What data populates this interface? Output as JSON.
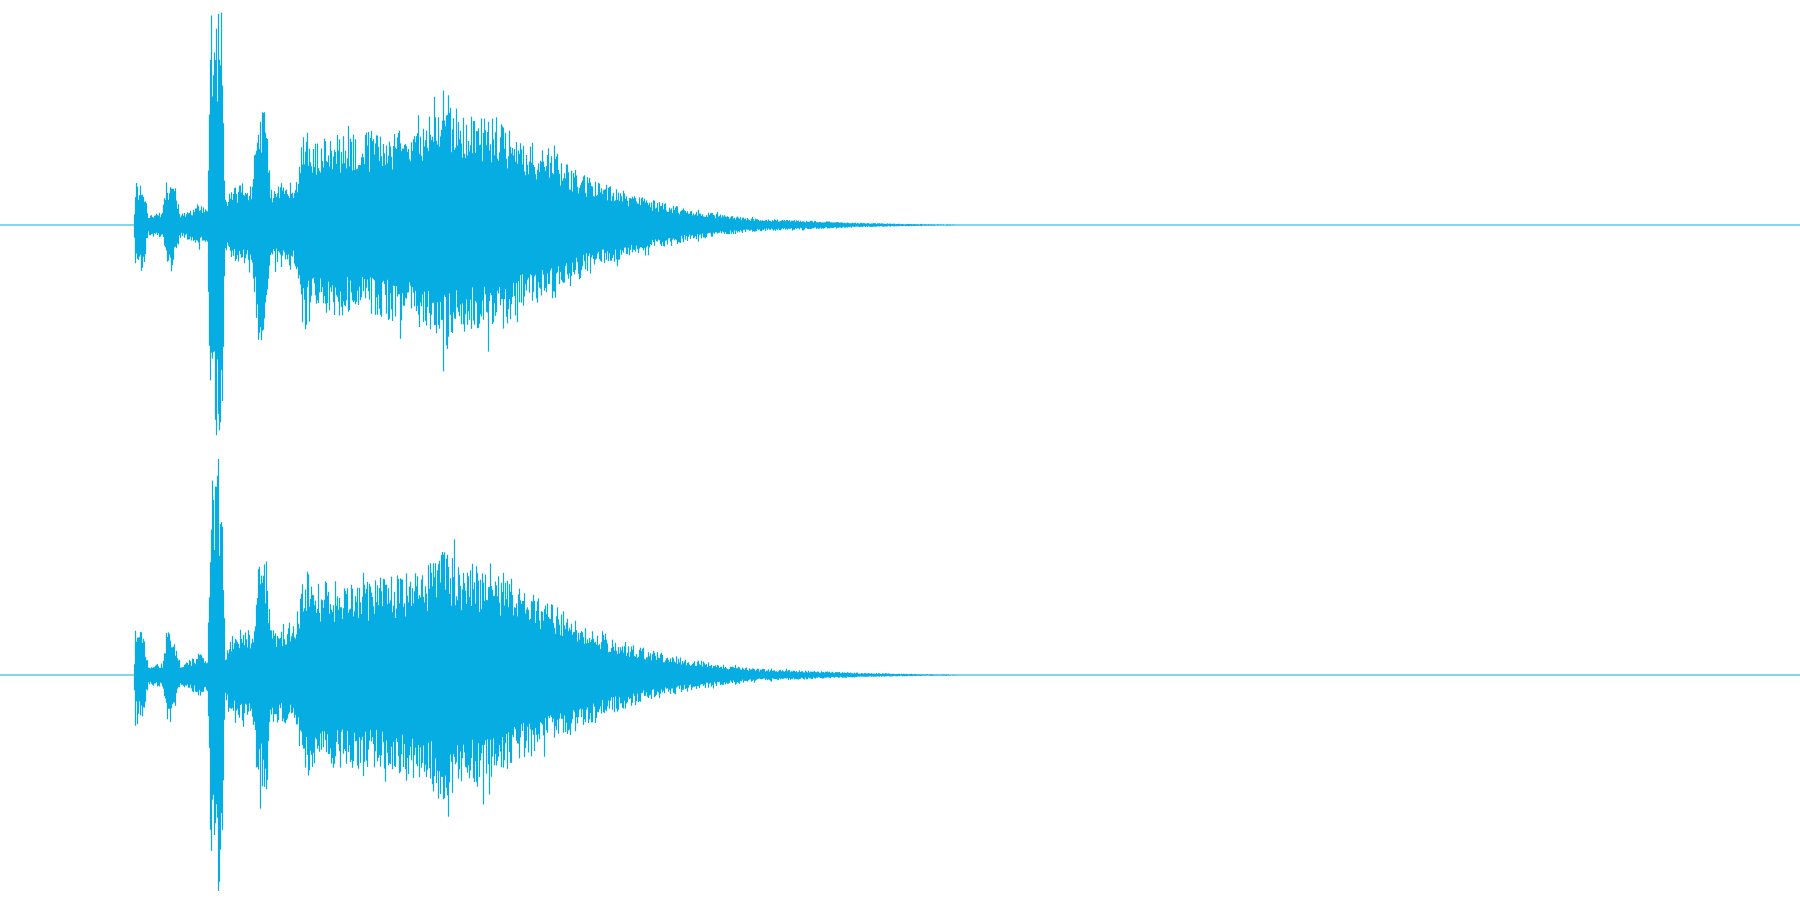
{
  "waveform": {
    "color": "#06ade2",
    "background": "#ffffff",
    "channels": [
      {
        "name": "left",
        "envelope": [
          [
            0.0,
            0.0
          ],
          [
            0.074,
            0.0
          ],
          [
            0.075,
            0.2
          ],
          [
            0.078,
            0.22
          ],
          [
            0.08,
            0.18
          ],
          [
            0.082,
            0.05
          ],
          [
            0.09,
            0.06
          ],
          [
            0.092,
            0.2
          ],
          [
            0.096,
            0.23
          ],
          [
            0.098,
            0.1
          ],
          [
            0.1,
            0.06
          ],
          [
            0.105,
            0.07
          ],
          [
            0.11,
            0.1
          ],
          [
            0.115,
            0.08
          ],
          [
            0.117,
            0.99
          ],
          [
            0.123,
            0.99
          ],
          [
            0.125,
            0.12
          ],
          [
            0.13,
            0.18
          ],
          [
            0.135,
            0.2
          ],
          [
            0.14,
            0.18
          ],
          [
            0.143,
            0.55
          ],
          [
            0.148,
            0.56
          ],
          [
            0.15,
            0.18
          ],
          [
            0.158,
            0.2
          ],
          [
            0.165,
            0.22
          ],
          [
            0.168,
            0.5
          ],
          [
            0.175,
            0.42
          ],
          [
            0.19,
            0.42
          ],
          [
            0.21,
            0.44
          ],
          [
            0.23,
            0.46
          ],
          [
            0.245,
            0.6
          ],
          [
            0.26,
            0.5
          ],
          [
            0.275,
            0.52
          ],
          [
            0.29,
            0.4
          ],
          [
            0.305,
            0.36
          ],
          [
            0.32,
            0.26
          ],
          [
            0.34,
            0.18
          ],
          [
            0.36,
            0.12
          ],
          [
            0.38,
            0.08
          ],
          [
            0.4,
            0.05
          ],
          [
            0.42,
            0.03
          ],
          [
            0.45,
            0.02
          ],
          [
            0.48,
            0.01
          ],
          [
            0.5,
            0.006
          ],
          [
            0.53,
            0.003
          ],
          [
            0.54,
            0.0
          ],
          [
            1.0,
            0.0
          ]
        ]
      },
      {
        "name": "right",
        "envelope": [
          [
            0.0,
            0.0
          ],
          [
            0.074,
            0.0
          ],
          [
            0.075,
            0.2
          ],
          [
            0.078,
            0.22
          ],
          [
            0.08,
            0.18
          ],
          [
            0.082,
            0.05
          ],
          [
            0.09,
            0.06
          ],
          [
            0.092,
            0.2
          ],
          [
            0.096,
            0.23
          ],
          [
            0.098,
            0.1
          ],
          [
            0.1,
            0.06
          ],
          [
            0.105,
            0.07
          ],
          [
            0.11,
            0.1
          ],
          [
            0.115,
            0.08
          ],
          [
            0.117,
            0.99
          ],
          [
            0.123,
            0.99
          ],
          [
            0.125,
            0.12
          ],
          [
            0.13,
            0.2
          ],
          [
            0.135,
            0.22
          ],
          [
            0.14,
            0.2
          ],
          [
            0.143,
            0.56
          ],
          [
            0.148,
            0.56
          ],
          [
            0.15,
            0.22
          ],
          [
            0.158,
            0.24
          ],
          [
            0.165,
            0.26
          ],
          [
            0.168,
            0.5
          ],
          [
            0.175,
            0.44
          ],
          [
            0.19,
            0.44
          ],
          [
            0.21,
            0.46
          ],
          [
            0.23,
            0.48
          ],
          [
            0.245,
            0.6
          ],
          [
            0.26,
            0.52
          ],
          [
            0.275,
            0.52
          ],
          [
            0.29,
            0.4
          ],
          [
            0.305,
            0.34
          ],
          [
            0.32,
            0.26
          ],
          [
            0.34,
            0.18
          ],
          [
            0.36,
            0.12
          ],
          [
            0.38,
            0.08
          ],
          [
            0.4,
            0.05
          ],
          [
            0.42,
            0.03
          ],
          [
            0.45,
            0.02
          ],
          [
            0.48,
            0.01
          ],
          [
            0.5,
            0.006
          ],
          [
            0.53,
            0.003
          ],
          [
            0.545,
            0.0
          ],
          [
            1.0,
            0.0
          ]
        ]
      }
    ]
  }
}
